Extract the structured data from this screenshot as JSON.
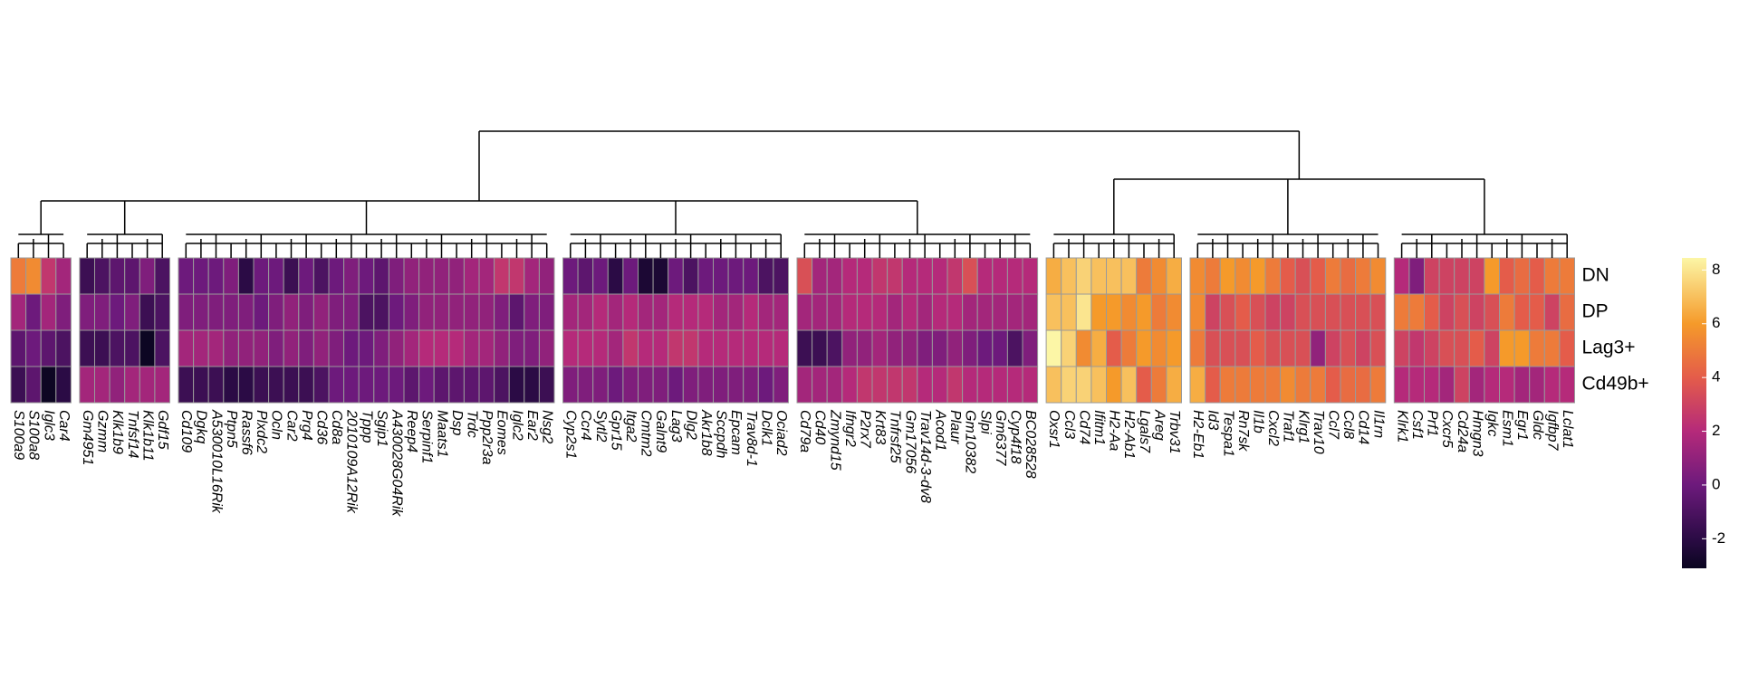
{
  "chart_data": {
    "type": "heatmap",
    "rows": [
      "DN",
      "DP",
      "Lag3+",
      "Cd49b+"
    ],
    "groups": [
      {
        "genes": [
          "S100a9",
          "S100a8",
          "Iglc3",
          "Car4"
        ],
        "values": [
          [
            5,
            5.5,
            2.5,
            1.5
          ],
          [
            1.5,
            0,
            1.5,
            0.5
          ],
          [
            -0.5,
            0,
            -0.5,
            -1
          ],
          [
            -1.5,
            -0.5,
            -3,
            -2
          ]
        ]
      },
      {
        "genes": [
          "Gm4951",
          "Gzmm",
          "Klk1b9",
          "Tnfsf14",
          "Klk1b11",
          "Gdf15"
        ],
        "values": [
          [
            -1.5,
            -1,
            -0.5,
            -0.5,
            0.5,
            -1
          ],
          [
            0.5,
            0.5,
            0,
            0.5,
            -1.5,
            -1
          ],
          [
            -1.5,
            -1.5,
            -1,
            -1,
            -3,
            -1
          ],
          [
            1.5,
            1.5,
            1,
            1.5,
            1.5,
            1.5
          ]
        ]
      },
      {
        "genes": [
          "Cd109",
          "Dgkq",
          "A530010L16Rik",
          "Ptpn5",
          "Rassf6",
          "Plxdc2",
          "Ocln",
          "Car2",
          "Prg4",
          "Cd36",
          "Cd8a",
          "2010109A12Rik",
          "Tppp",
          "Sgip1",
          "A430028G04Rik",
          "Reep4",
          "Serpinf1",
          "Maats1",
          "Dsp",
          "Trdc",
          "Ppp2r3a",
          "Eomes",
          "Iglc2",
          "Ear2",
          "Nsg2"
        ],
        "values": [
          [
            0,
            0,
            0,
            0.5,
            -2,
            0,
            0,
            -1.5,
            0,
            -1,
            0,
            0.5,
            0,
            -0.5,
            0.5,
            1,
            1,
            1,
            1,
            1.5,
            1.5,
            2.5,
            2.5,
            1.5,
            1
          ],
          [
            0.5,
            0.5,
            0.5,
            0.5,
            0.5,
            0,
            0.5,
            1,
            0.5,
            1,
            0.5,
            0.5,
            -1,
            -1,
            0,
            0.5,
            1,
            1,
            1,
            1,
            1,
            0.5,
            -0.5,
            0.5,
            0.5
          ],
          [
            1.5,
            1.5,
            1.5,
            1,
            1,
            1,
            0.5,
            1,
            0.5,
            1,
            0.5,
            0,
            0,
            0.5,
            1,
            1.5,
            2,
            2,
            2,
            1.5,
            1.5,
            1,
            0.5,
            0.5,
            1
          ],
          [
            -1.5,
            -1.5,
            -1.5,
            -2,
            -2,
            -1.5,
            -1.5,
            -1.5,
            -1.5,
            -1,
            0,
            0,
            0,
            0,
            0,
            -0.5,
            0,
            -0.5,
            -0.5,
            -0.5,
            -0.5,
            -1,
            -2,
            -2,
            -1.5
          ]
        ]
      },
      {
        "genes": [
          "Cyp2s1",
          "Ccr4",
          "Sytl2",
          "Gpr15",
          "Itga2",
          "Cmtm2",
          "Galnt9",
          "Lag3",
          "Dlg2",
          "Akr1b8",
          "Sccpdh",
          "Epcam",
          "Trav8d-1",
          "Dclk1",
          "Ociad2"
        ],
        "values": [
          [
            0,
            -0.5,
            0,
            -2,
            0,
            -2.5,
            -2.5,
            0,
            -1,
            0,
            0,
            0,
            0,
            -1,
            -1
          ],
          [
            1.5,
            1.5,
            2,
            1.5,
            2,
            1.5,
            1.5,
            2,
            2,
            2,
            1.5,
            1.5,
            2,
            1.5,
            1.5
          ],
          [
            2,
            2,
            2,
            1.5,
            2.5,
            2,
            2,
            2.5,
            2.5,
            2,
            2,
            2,
            2,
            2,
            2
          ],
          [
            0.5,
            0.5,
            0.5,
            0,
            0.5,
            0.5,
            0.5,
            0,
            0.5,
            0.5,
            0.5,
            0.5,
            0.5,
            0,
            0.5
          ]
        ]
      },
      {
        "genes": [
          "Cd79a",
          "Cd40",
          "Zmynd15",
          "Ifngr2",
          "P2rx7",
          "Krt83",
          "Tnfrsf25",
          "Gm17056",
          "Trav14d-3-dv8",
          "Acod1",
          "Plaur",
          "Gm10382",
          "Slpi",
          "Gm6377",
          "Cyp4f18",
          "BC028528"
        ],
        "values": [
          [
            3.5,
            1.5,
            1.5,
            2,
            2,
            2.5,
            2.5,
            2,
            2,
            2,
            2.5,
            3.5,
            2,
            2,
            2,
            2
          ],
          [
            1.5,
            1.5,
            1.5,
            2,
            2,
            2,
            1.5,
            2,
            1.5,
            2,
            2,
            1.5,
            1.5,
            1.5,
            1.5,
            1.5
          ],
          [
            -1.5,
            -1.5,
            -1,
            1,
            1,
            1.5,
            1,
            1,
            0.5,
            0.5,
            1,
            0.5,
            0,
            0,
            -1,
            0.5
          ],
          [
            1.5,
            1.5,
            1.5,
            2,
            2.5,
            2.5,
            2.5,
            2.5,
            2,
            2,
            2.5,
            2,
            2,
            2,
            2,
            2
          ]
        ]
      },
      {
        "genes": [
          "Oxsr1",
          "Ccl3",
          "Cd74",
          "Ifitm1",
          "H2-Aa",
          "H2-Ab1",
          "Lgals7",
          "Areg",
          "Trbv31"
        ],
        "values": [
          [
            6.5,
            7,
            7.5,
            7,
            7,
            7,
            5,
            5.5,
            6.5
          ],
          [
            7,
            7,
            8,
            6,
            6,
            5.5,
            6,
            5,
            5.5
          ],
          [
            8.5,
            7.5,
            5.5,
            6.5,
            4,
            5,
            6,
            5.5,
            6
          ],
          [
            7,
            7.5,
            7.5,
            7,
            6,
            7,
            4,
            5,
            6.5
          ]
        ]
      },
      {
        "genes": [
          "H2-Eb1",
          "Id3",
          "Tespa1",
          "Rn7sk",
          "Il1b",
          "Cxcl2",
          "Traf1",
          "Klrg1",
          "Trav10",
          "Ccl7",
          "Ccl8",
          "Cd14",
          "Il1rn"
        ],
        "values": [
          [
            5.5,
            5,
            6,
            5.5,
            6,
            5,
            4,
            3.5,
            4,
            5,
            4.5,
            5,
            5.5
          ],
          [
            5.5,
            3,
            3.5,
            4,
            3.5,
            3,
            3,
            3.5,
            3.5,
            3.5,
            3.5,
            3.5,
            3.5
          ],
          [
            5,
            3.5,
            3.5,
            3.5,
            4,
            3.5,
            3.5,
            3.5,
            1,
            3,
            3.5,
            3,
            3.5
          ],
          [
            6.5,
            4,
            5,
            5,
            5,
            5,
            5.5,
            5,
            5,
            4,
            4.5,
            4.5,
            5
          ]
        ]
      },
      {
        "genes": [
          "Klrk1",
          "Csf1",
          "Prf1",
          "Cxcr5",
          "Cd24a",
          "Hmgn3",
          "Igkc",
          "Esm1",
          "Egr1",
          "Gldc",
          "Igfbp7",
          "Lclat1"
        ],
        "values": [
          [
            2,
            0.5,
            3,
            3,
            3,
            3,
            6,
            4,
            4.5,
            4,
            5,
            5
          ],
          [
            5,
            5,
            4,
            3,
            3.5,
            3,
            3.5,
            5,
            4,
            4,
            3,
            4.5
          ],
          [
            3,
            2.5,
            3,
            3.5,
            3.5,
            4,
            3,
            6,
            6,
            5,
            5,
            4
          ],
          [
            2,
            2,
            2,
            1.5,
            3,
            1.5,
            2,
            2,
            1.5,
            1.5,
            2,
            2
          ]
        ]
      }
    ],
    "clim": [
      -3.1,
      8.45
    ],
    "cticks": [
      -2,
      0,
      2,
      4,
      6,
      8
    ],
    "colorscale": [
      [
        -3.1,
        "#0a0520"
      ],
      [
        -2,
        "#2b0b45"
      ],
      [
        0,
        "#6d1a7c"
      ],
      [
        2,
        "#b52a7a"
      ],
      [
        4,
        "#e45c4a"
      ],
      [
        6,
        "#f59a2a"
      ],
      [
        8.45,
        "#fcf6a6"
      ]
    ]
  }
}
